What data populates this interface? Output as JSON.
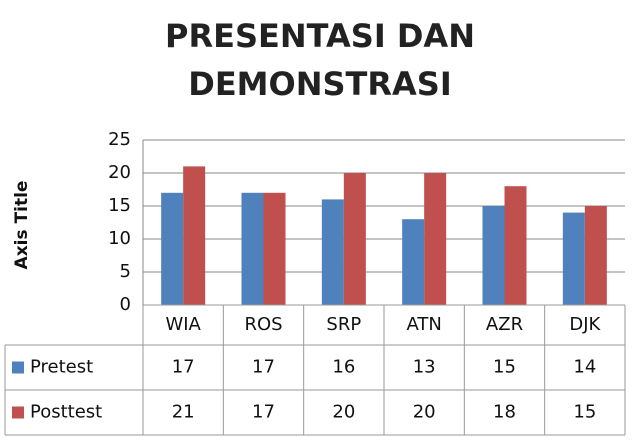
{
  "chart_data": {
    "type": "bar",
    "title": "PRESENTASI DAN DEMONSTRASI",
    "y_label": "Axis Title",
    "categories": [
      "WIA",
      "ROS",
      "SRP",
      "ATN",
      "AZR",
      "DJK"
    ],
    "series": [
      {
        "name": "Pretest",
        "color": "#4f81bd",
        "values": [
          17,
          17,
          16,
          13,
          15,
          14
        ]
      },
      {
        "name": "Posttest",
        "color": "#c0504d",
        "values": [
          21,
          17,
          20,
          20,
          18,
          15
        ]
      }
    ],
    "ylim": [
      0,
      25
    ],
    "yticks": [
      0,
      5,
      10,
      15,
      20,
      25
    ],
    "grid": true,
    "data_table": true
  }
}
